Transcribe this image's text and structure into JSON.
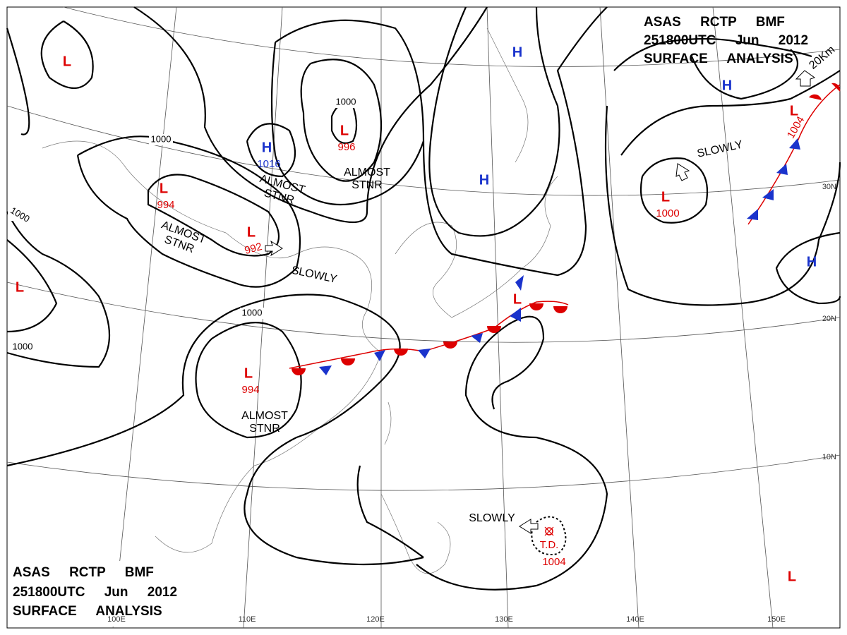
{
  "header": {
    "line1": "ASAS RCTP BMF",
    "line2": "251800UTC Jun 2012",
    "line3": "SURFACE ANALYSIS"
  },
  "pressure_centers": [
    {
      "symbol": "L"
    },
    {
      "symbol": "H",
      "value": 1016
    },
    {
      "symbol": "L",
      "value": 996
    },
    {
      "symbol": "L",
      "value": 994
    },
    {
      "symbol": "L",
      "value": 992
    },
    {
      "symbol": "L",
      "value": 994
    },
    {
      "symbol": "H"
    },
    {
      "symbol": "H"
    },
    {
      "symbol": "H"
    },
    {
      "symbol": "L",
      "value": 1000
    },
    {
      "symbol": "H"
    },
    {
      "symbol": "L",
      "value": 1004
    },
    {
      "symbol": "L"
    },
    {
      "symbol": "L"
    },
    {
      "symbol": "L"
    }
  ],
  "isobar_labels": [
    1000,
    1000,
    1000,
    1000,
    1000
  ],
  "motion_labels": [
    {
      "lines": [
        "ALMOST",
        "STNR"
      ]
    },
    {
      "lines": [
        "ALMOST",
        "STNR"
      ]
    },
    {
      "lines": [
        "ALMOST",
        "STNR"
      ]
    },
    {
      "lines": [
        "ALMOST",
        "STNR"
      ]
    },
    {
      "lines": [
        "SLOWLY"
      ]
    },
    {
      "lines": [
        "SLOWLY"
      ]
    },
    {
      "lines": [
        "SLOWLY"
      ]
    }
  ],
  "tropical_depression": {
    "label": "T.D.",
    "value": 1004
  },
  "scale_label": "20Km",
  "longitudes": [
    "100E",
    "110E",
    "120E",
    "130E",
    "140E",
    "150E"
  ],
  "latitudes": [
    "30N",
    "20N",
    "10N"
  ]
}
